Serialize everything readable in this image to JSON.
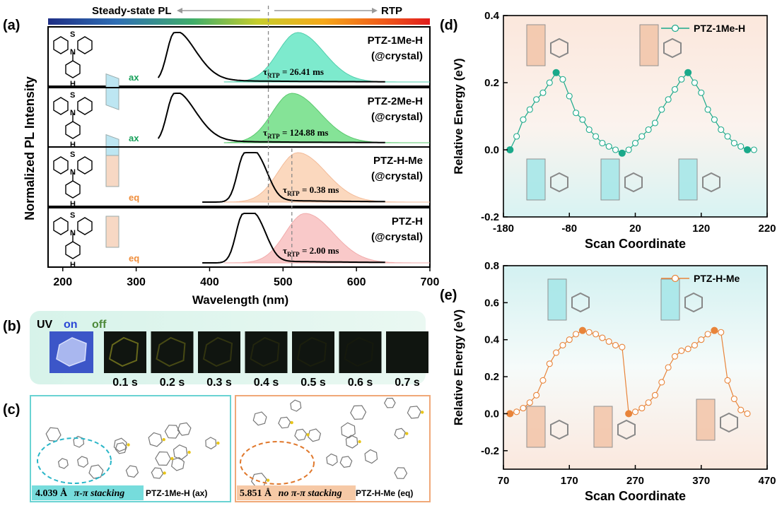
{
  "panels": {
    "a": "(a)",
    "b": "(b)",
    "c": "(c)",
    "d": "(d)",
    "e": "(e)"
  },
  "panel_a": {
    "top_left": "Steady-state PL",
    "top_right": "RTP",
    "ylabel": "Normalized PL Intensity",
    "xlabel": "Wavelength (nm)",
    "x_ticks": [
      "200",
      "300",
      "400",
      "500",
      "600",
      "700"
    ],
    "rows": [
      {
        "name": "PTZ-1Me-H",
        "env": "(@crystal)",
        "conf": "ax",
        "tau_prefix": "τ",
        "tau_sub": "RTP",
        "tau_value": " = 26.41 ms",
        "S": "S",
        "N": "N",
        "H": "H",
        "pl_peak": 352,
        "rtp_peak": 520
      },
      {
        "name": "PTZ-2Me-H",
        "env": "(@crystal)",
        "conf": "ax",
        "tau_prefix": "τ",
        "tau_sub": "RTP",
        "tau_value": " = 124.88 ms",
        "S": "S",
        "N": "N",
        "H": "H",
        "pl_peak": 352,
        "rtp_peak": 512
      },
      {
        "name": "PTZ-H-Me",
        "env": "(@crystal)",
        "conf": "eq",
        "tau_prefix": "τ",
        "tau_sub": "RTP",
        "tau_value": " = 0.38 ms",
        "S": "S",
        "N": "N",
        "H": "H",
        "pl_peak": 448,
        "rtp_peak": 520
      },
      {
        "name": "PTZ-H",
        "env": "(@crystal)",
        "conf": "eq",
        "tau_prefix": "τ",
        "tau_sub": "RTP",
        "tau_value": " = 2.00 ms",
        "S": "S",
        "N": "N",
        "H": "H",
        "pl_peak": 446,
        "rtp_peak": 530
      }
    ]
  },
  "panel_b": {
    "uv": "UV",
    "on": "on",
    "off": "off",
    "times": [
      "0.1 s",
      "0.2 s",
      "0.3 s",
      "0.4 s",
      "0.5 s",
      "0.6 s",
      "0.7 s"
    ],
    "brightness": [
      0.55,
      0.42,
      0.3,
      0.2,
      0.12,
      0.06,
      0.0
    ]
  },
  "panel_c": {
    "left_distance": "4.039 Å",
    "left_stack": "π-π stacking",
    "left_name": "PTZ-1Me-H (ax)",
    "right_distance": "5.851 Å",
    "right_stack": "no π-π stacking",
    "right_name": "PTZ-H-Me (eq)"
  },
  "chart_data": [
    {
      "type": "line",
      "panel": "d",
      "legend": "PTZ-1Me-H",
      "xlabel": "Scan Coordinate",
      "ylabel": "Relative Energy (eV)",
      "xlim": [
        -180,
        220
      ],
      "ylim": [
        -0.2,
        0.4
      ],
      "x_ticks": [
        "-180",
        "-80",
        "20",
        "120",
        "220"
      ],
      "y_ticks": [
        "-0.2",
        "0.0",
        "0.2",
        "0.4"
      ],
      "x": [
        -170,
        -160,
        -150,
        -140,
        -130,
        -120,
        -110,
        -100,
        -90,
        -80,
        -70,
        -60,
        -50,
        -40,
        -30,
        -20,
        -10,
        0,
        10,
        20,
        30,
        40,
        50,
        60,
        70,
        80,
        90,
        100,
        110,
        120,
        130,
        140,
        150,
        160,
        170,
        180,
        190,
        200
      ],
      "y": [
        0.0,
        0.04,
        0.09,
        0.12,
        0.15,
        0.17,
        0.2,
        0.23,
        0.21,
        0.16,
        0.11,
        0.09,
        0.06,
        0.04,
        0.02,
        0.01,
        0.0,
        -0.01,
        0.0,
        0.02,
        0.04,
        0.06,
        0.08,
        0.12,
        0.15,
        0.18,
        0.21,
        0.23,
        0.2,
        0.17,
        0.12,
        0.09,
        0.06,
        0.04,
        0.02,
        0.01,
        0.0,
        0.0
      ],
      "highlight_x": [
        -170,
        -100,
        0,
        100,
        190
      ]
    },
    {
      "type": "line",
      "panel": "e",
      "legend": "PTZ-H-Me",
      "xlabel": "Scan Coordinate",
      "ylabel": "Relative Energy (eV)",
      "xlim": [
        70,
        470
      ],
      "ylim": [
        -0.3,
        0.8
      ],
      "x_ticks": [
        "70",
        "170",
        "270",
        "370",
        "470"
      ],
      "y_ticks": [
        "-0.2",
        "0.0",
        "0.2",
        "0.4",
        "0.6",
        "0.8"
      ],
      "x": [
        80,
        90,
        100,
        110,
        120,
        130,
        140,
        150,
        160,
        170,
        180,
        190,
        200,
        210,
        220,
        230,
        240,
        250,
        260,
        270,
        280,
        290,
        300,
        310,
        320,
        330,
        340,
        350,
        360,
        370,
        380,
        390,
        400,
        410,
        420,
        430,
        440
      ],
      "y": [
        0.0,
        0.01,
        0.03,
        0.06,
        0.1,
        0.18,
        0.27,
        0.33,
        0.37,
        0.4,
        0.43,
        0.45,
        0.44,
        0.43,
        0.41,
        0.39,
        0.37,
        0.36,
        0.0,
        0.01,
        0.03,
        0.06,
        0.1,
        0.17,
        0.25,
        0.31,
        0.34,
        0.35,
        0.37,
        0.4,
        0.43,
        0.45,
        0.44,
        0.18,
        0.08,
        0.02,
        0.0
      ],
      "highlight_x": [
        80,
        190,
        260,
        390
      ]
    }
  ]
}
